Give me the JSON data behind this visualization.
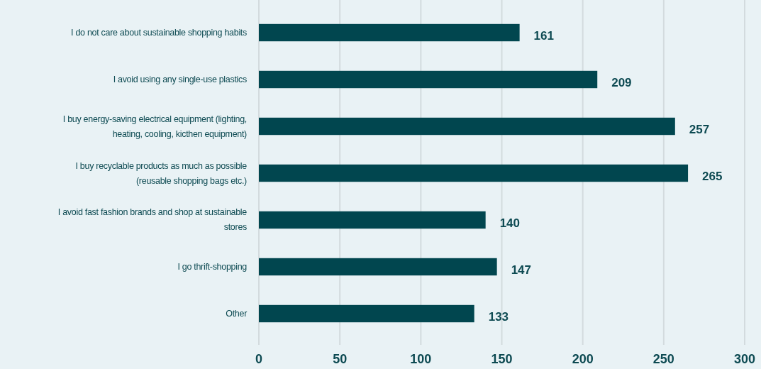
{
  "chart_data": {
    "type": "bar",
    "orientation": "horizontal",
    "categories": [
      "I do not care about sustainable shopping habits",
      "I avoid using any single-use plastics",
      "I buy energy-saving electrical equipment (lighting, heating, cooling, kicthen equipment)",
      "I buy recyclable products as much as possible (reusable shopping bags etc.)",
      "I avoid fast fashion brands and shop at sustainable stores",
      "I go thrift-shopping",
      "Other"
    ],
    "values": [
      161,
      209,
      257,
      265,
      140,
      147,
      133
    ],
    "color": "#01464f",
    "xlim": [
      0,
      300
    ],
    "xticks": [
      0,
      50,
      100,
      150,
      200,
      250,
      300
    ],
    "grid": "x",
    "data_labels": true
  }
}
